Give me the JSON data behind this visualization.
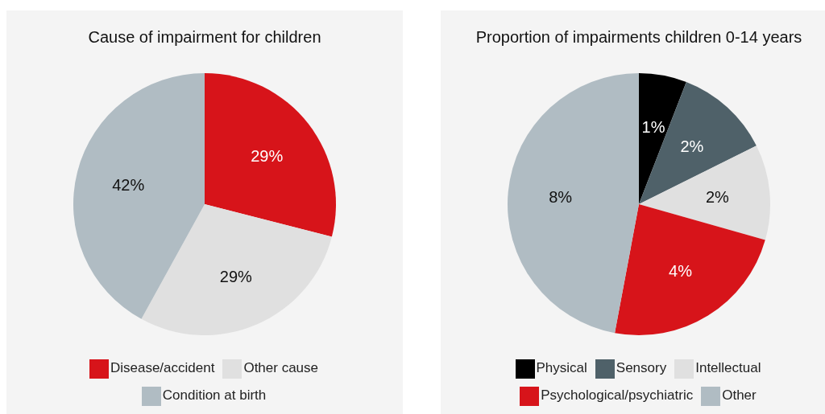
{
  "chart_data": [
    {
      "type": "pie",
      "title": "Cause of impairment for children",
      "categories": [
        "Disease/accident",
        "Other cause",
        "Condition at birth"
      ],
      "values": [
        29,
        29,
        42
      ],
      "colors": [
        "#d7141a",
        "#e0e0e0",
        "#b0bcc3"
      ],
      "value_labels": [
        "29%",
        "29%",
        "42%"
      ],
      "legend": "bottom"
    },
    {
      "type": "pie",
      "title": "Proportion of impairments children 0-14 years",
      "categories": [
        "Physical",
        "Sensory",
        "Intellectual",
        "Psychological/psychiatric",
        "Other"
      ],
      "values": [
        1,
        2,
        2,
        4,
        8
      ],
      "colors": [
        "#000000",
        "#4f6169",
        "#e0e0e0",
        "#d7141a",
        "#b0bcc3"
      ],
      "value_labels": [
        "1%",
        "2%",
        "2%",
        "4%",
        "8%"
      ],
      "legend": "bottom"
    }
  ]
}
